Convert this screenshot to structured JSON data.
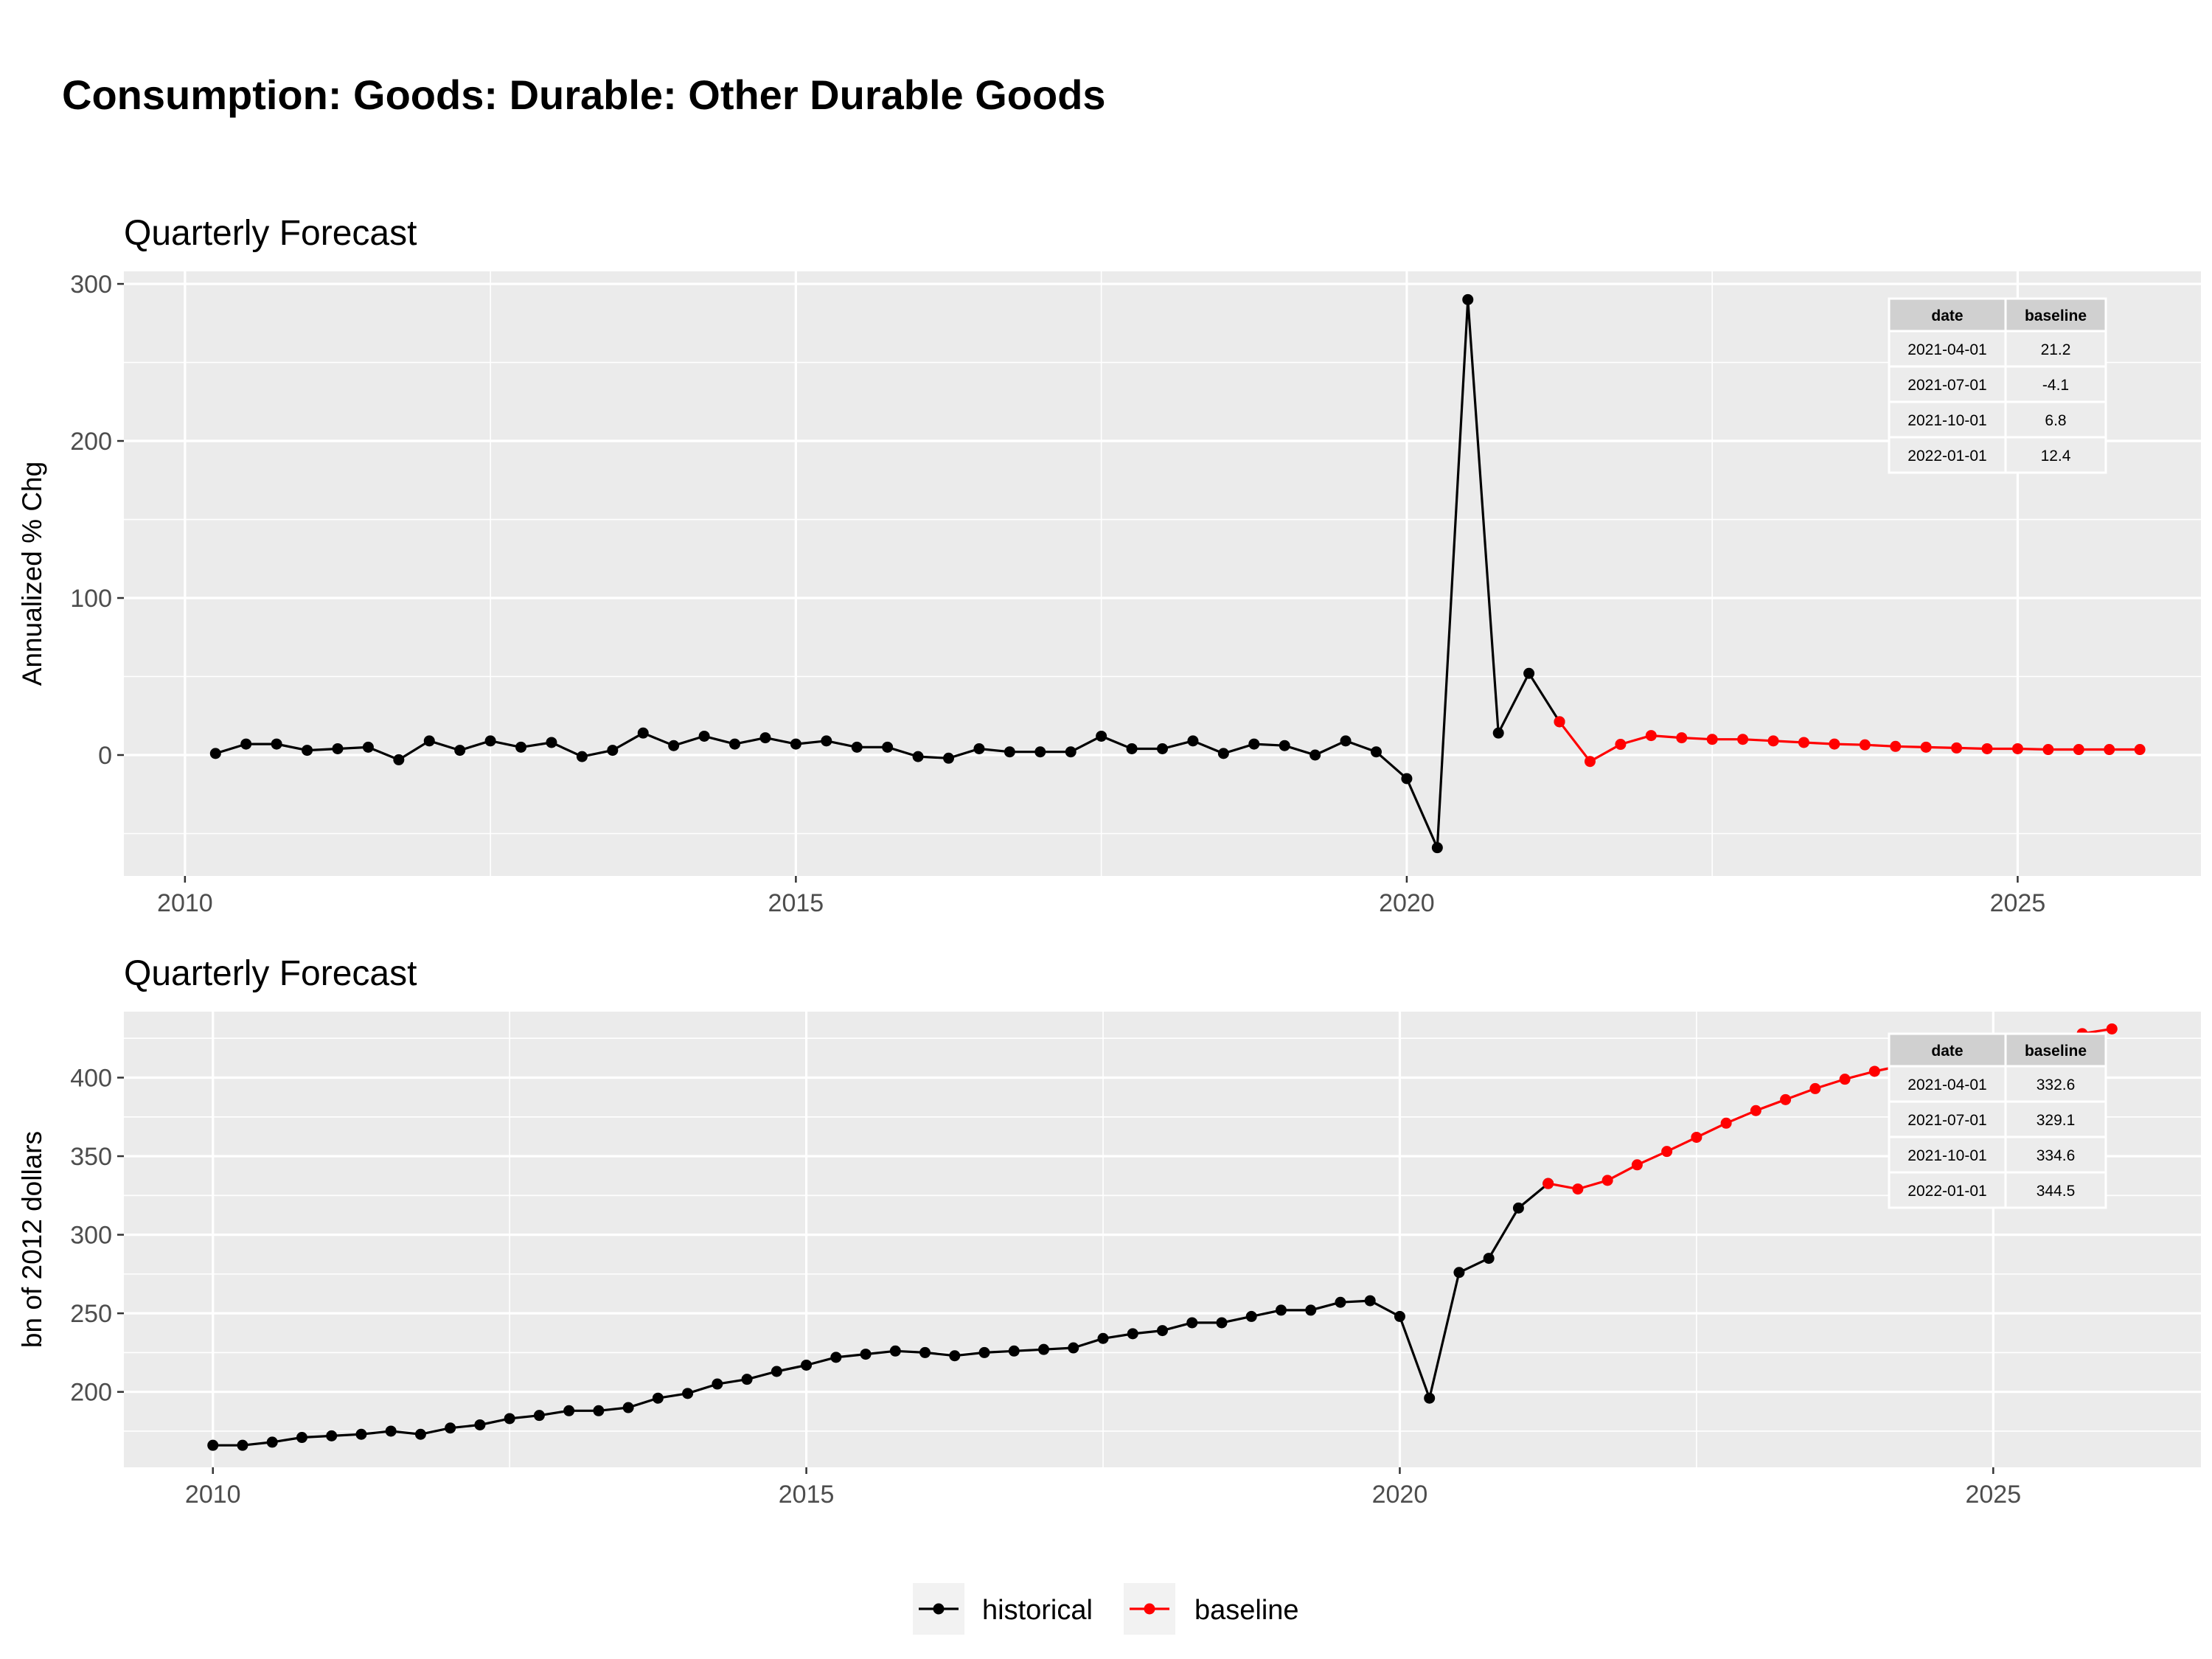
{
  "title": "Consumption: Goods: Durable: Other Durable Goods",
  "colors": {
    "historical": "#000000",
    "baseline": "#ff0000",
    "panel": "#ebebeb",
    "grid": "#ffffff"
  },
  "legend": {
    "items": [
      "historical",
      "baseline"
    ]
  },
  "chart_data": [
    {
      "type": "line",
      "subtitle": "Quarterly Forecast",
      "ylabel": "Annualized % Chg",
      "xlim": [
        2009.5,
        2026.5
      ],
      "ylim": [
        -77,
        308
      ],
      "x_ticks": [
        2010,
        2015,
        2020,
        2025
      ],
      "y_ticks": [
        0,
        100,
        200,
        300
      ],
      "grid": true,
      "series": [
        {
          "name": "historical",
          "x": [
            2010.25,
            2010.5,
            2010.75,
            2011.0,
            2011.25,
            2011.5,
            2011.75,
            2012.0,
            2012.25,
            2012.5,
            2012.75,
            2013.0,
            2013.25,
            2013.5,
            2013.75,
            2014.0,
            2014.25,
            2014.5,
            2014.75,
            2015.0,
            2015.25,
            2015.5,
            2015.75,
            2016.0,
            2016.25,
            2016.5,
            2016.75,
            2017.0,
            2017.25,
            2017.5,
            2017.75,
            2018.0,
            2018.25,
            2018.5,
            2018.75,
            2019.0,
            2019.25,
            2019.5,
            2019.75,
            2020.0,
            2020.25,
            2020.5,
            2020.75,
            2021.0,
            2021.25
          ],
          "y": [
            1,
            7,
            7,
            3,
            4,
            5,
            -3,
            9,
            3,
            9,
            5,
            8,
            -1,
            3,
            14,
            6,
            12,
            7,
            11,
            7,
            9,
            5,
            5,
            -1,
            -2,
            4,
            2,
            2,
            2,
            12,
            4,
            4,
            9,
            1,
            7,
            6,
            0,
            9,
            2,
            -15,
            -59,
            290,
            14,
            52,
            21.2
          ]
        },
        {
          "name": "baseline",
          "x": [
            2021.25,
            2021.5,
            2021.75,
            2022.0,
            2022.25,
            2022.5,
            2022.75,
            2023.0,
            2023.25,
            2023.5,
            2023.75,
            2024.0,
            2024.25,
            2024.5,
            2024.75,
            2025.0,
            2025.25,
            2025.5,
            2025.75,
            2026.0
          ],
          "y": [
            21.2,
            -4.1,
            6.8,
            12.4,
            11,
            10,
            10,
            9,
            8,
            7,
            6.5,
            5.5,
            5,
            4.5,
            4,
            4,
            3.5,
            3.5,
            3.5,
            3.5
          ]
        }
      ],
      "table": {
        "headers": [
          "date",
          "baseline"
        ],
        "rows": [
          [
            "2021-04-01",
            "21.2"
          ],
          [
            "2021-07-01",
            "-4.1"
          ],
          [
            "2021-10-01",
            "6.8"
          ],
          [
            "2022-01-01",
            "12.4"
          ]
        ]
      }
    },
    {
      "type": "line",
      "subtitle": "Quarterly Forecast",
      "ylabel": "bn of 2012 dollars",
      "xlim": [
        2009.25,
        2026.75
      ],
      "ylim": [
        152,
        442
      ],
      "x_ticks": [
        2010,
        2015,
        2020,
        2025
      ],
      "y_ticks": [
        200,
        250,
        300,
        350,
        400
      ],
      "grid": true,
      "series": [
        {
          "name": "historical",
          "x": [
            2010.0,
            2010.25,
            2010.5,
            2010.75,
            2011.0,
            2011.25,
            2011.5,
            2011.75,
            2012.0,
            2012.25,
            2012.5,
            2012.75,
            2013.0,
            2013.25,
            2013.5,
            2013.75,
            2014.0,
            2014.25,
            2014.5,
            2014.75,
            2015.0,
            2015.25,
            2015.5,
            2015.75,
            2016.0,
            2016.25,
            2016.5,
            2016.75,
            2017.0,
            2017.25,
            2017.5,
            2017.75,
            2018.0,
            2018.25,
            2018.5,
            2018.75,
            2019.0,
            2019.25,
            2019.5,
            2019.75,
            2020.0,
            2020.25,
            2020.5,
            2020.75,
            2021.0,
            2021.25
          ],
          "y": [
            166,
            166,
            168,
            171,
            172,
            173,
            175,
            173,
            177,
            179,
            183,
            185,
            188,
            188,
            190,
            196,
            199,
            205,
            208,
            213,
            217,
            222,
            224,
            226,
            225,
            223,
            225,
            226,
            227,
            228,
            234,
            237,
            239,
            244,
            244,
            248,
            252,
            252,
            257,
            258,
            248,
            196,
            276,
            285,
            317,
            332.6
          ]
        },
        {
          "name": "baseline",
          "x": [
            2021.25,
            2021.5,
            2021.75,
            2022.0,
            2022.25,
            2022.5,
            2022.75,
            2023.0,
            2023.25,
            2023.5,
            2023.75,
            2024.0,
            2024.25,
            2024.5,
            2024.75,
            2025.0,
            2025.25,
            2025.5,
            2025.75,
            2026.0
          ],
          "y": [
            332.6,
            329.1,
            334.6,
            344.5,
            353,
            362,
            371,
            379,
            386,
            393,
            399,
            404,
            408,
            412,
            416,
            419,
            422,
            425,
            428,
            431
          ]
        }
      ],
      "table": {
        "headers": [
          "date",
          "baseline"
        ],
        "rows": [
          [
            "2021-04-01",
            "332.6"
          ],
          [
            "2021-07-01",
            "329.1"
          ],
          [
            "2021-10-01",
            "334.6"
          ],
          [
            "2022-01-01",
            "344.5"
          ]
        ]
      }
    }
  ]
}
